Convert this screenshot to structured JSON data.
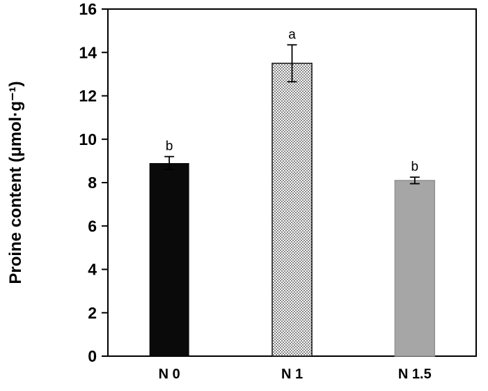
{
  "chart_data": {
    "type": "bar",
    "title": "",
    "xlabel": "",
    "ylabel": "Proine content (μmol·g⁻¹)",
    "categories": [
      "N 0",
      "N 1",
      "N 1.5"
    ],
    "values": [
      8.9,
      13.5,
      8.1
    ],
    "errors": [
      0.3,
      0.85,
      0.15
    ],
    "sig_letters": [
      "b",
      "a",
      "b"
    ],
    "bar_styles": [
      "solid-black",
      "dotted",
      "solid-gray"
    ],
    "ylim": [
      0,
      16
    ],
    "yticks": [
      0,
      2,
      4,
      6,
      8,
      10,
      12,
      14,
      16
    ],
    "grid": false,
    "legend": "none",
    "colors": {
      "black_bar": "#0a0a0a",
      "gray_bar": "#a6a6a6",
      "dot_fill": "#555555",
      "axis": "#000000",
      "background": "#ffffff"
    }
  }
}
